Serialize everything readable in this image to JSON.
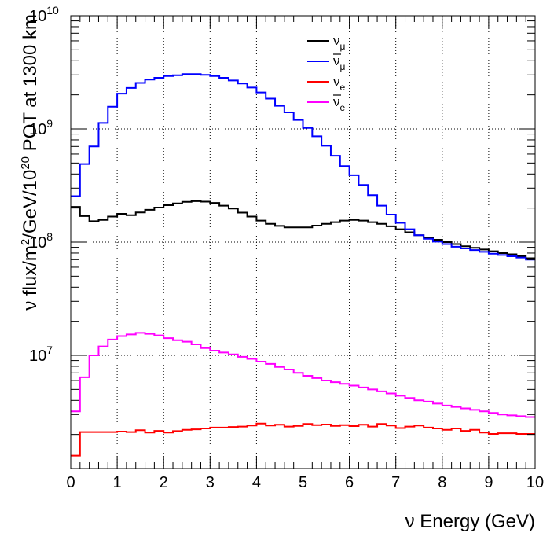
{
  "chart_data": {
    "type": "line",
    "style": "step-histogram",
    "title": "",
    "xlabel": "ν Energy (GeV)",
    "ylabel": "ν flux/m²/GeV/10²⁰ POT at 1300 km",
    "ylabel_parts": {
      "p1": "ν flux/m",
      "sup1": "2",
      "p2": "/GeV/10",
      "sup2": "20",
      "p3": " POT at 1300 km"
    },
    "xlim": [
      0,
      10
    ],
    "ylim": [
      1000000,
      10000000000
    ],
    "y_scale": "log",
    "grid": true,
    "legend_position": "top-right",
    "x_tick_labels": [
      "0",
      "1",
      "2",
      "3",
      "4",
      "5",
      "6",
      "7",
      "8",
      "9",
      "10"
    ],
    "y_tick_labels": [
      {
        "value": 10000000,
        "base": "10",
        "exp": "7"
      },
      {
        "value": 100000000,
        "base": "10",
        "exp": "8"
      },
      {
        "value": 1000000000,
        "base": "10",
        "exp": "9"
      },
      {
        "value": 10000000000,
        "base": "10",
        "exp": "10"
      }
    ],
    "bin_edges": [
      0,
      0.2,
      0.4,
      0.6,
      0.8,
      1.0,
      1.2,
      1.4,
      1.6,
      1.8,
      2.0,
      2.2,
      2.4,
      2.6,
      2.8,
      3.0,
      3.2,
      3.4,
      3.6,
      3.8,
      4.0,
      4.2,
      4.4,
      4.6,
      4.8,
      5.0,
      5.2,
      5.4,
      5.6,
      5.8,
      6.0,
      6.2,
      6.4,
      6.6,
      6.8,
      7.0,
      7.2,
      7.4,
      7.6,
      7.8,
      8.0,
      8.2,
      8.4,
      8.6,
      8.8,
      9.0,
      9.2,
      9.4,
      9.6,
      9.8,
      10.0
    ],
    "series": [
      {
        "name": "ν_μ",
        "label_main": "ν",
        "label_sub": "μ",
        "bar": false,
        "color": "#000000",
        "values": [
          205000000.0,
          170000000.0,
          153000000.0,
          157000000.0,
          168000000.0,
          178000000.0,
          173000000.0,
          183000000.0,
          193000000.0,
          202000000.0,
          212000000.0,
          220000000.0,
          227000000.0,
          230000000.0,
          228000000.0,
          222000000.0,
          210000000.0,
          198000000.0,
          182000000.0,
          168000000.0,
          155000000.0,
          145000000.0,
          139000000.0,
          135000000.0,
          135000000.0,
          135000000.0,
          140000000.0,
          145000000.0,
          150000000.0,
          155000000.0,
          157000000.0,
          155000000.0,
          150000000.0,
          145000000.0,
          138000000.0,
          130000000.0,
          122000000.0,
          115000000.0,
          110000000.0,
          105000000.0,
          100000000.0,
          96000000.0,
          92000000.0,
          89000000.0,
          86000000.0,
          83000000.0,
          80000000.0,
          78000000.0,
          75000000.0,
          72000000.0
        ]
      },
      {
        "name": "ν̄_μ",
        "label_main": "ν",
        "label_sub": "μ",
        "bar": true,
        "color": "#0000ff",
        "values": [
          255000000.0,
          490000000.0,
          700000000.0,
          1130000000.0,
          1570000000.0,
          2050000000.0,
          2300000000.0,
          2550000000.0,
          2730000000.0,
          2830000000.0,
          2930000000.0,
          2980000000.0,
          3050000000.0,
          3050000000.0,
          3000000000.0,
          2930000000.0,
          2830000000.0,
          2680000000.0,
          2520000000.0,
          2320000000.0,
          2100000000.0,
          1850000000.0,
          1600000000.0,
          1400000000.0,
          1200000000.0,
          1020000000.0,
          860000000.0,
          710000000.0,
          580000000.0,
          470000000.0,
          390000000.0,
          320000000.0,
          260000000.0,
          210000000.0,
          175000000.0,
          148000000.0,
          130000000.0,
          115000000.0,
          107000000.0,
          101000000.0,
          96000000.0,
          91000000.0,
          88000000.0,
          85000000.0,
          82000000.0,
          79000000.0,
          77000000.0,
          75000000.0,
          73000000.0,
          70000000.0
        ]
      },
      {
        "name": "ν_e",
        "label_main": "ν",
        "label_sub": "e",
        "bar": false,
        "color": "#ff0000",
        "values": [
          1300000.0,
          2100000.0,
          2100000.0,
          2100000.0,
          2100000.0,
          2120000.0,
          2100000.0,
          2180000.0,
          2080000.0,
          2150000.0,
          2080000.0,
          2140000.0,
          2200000.0,
          2220000.0,
          2260000.0,
          2300000.0,
          2300000.0,
          2330000.0,
          2350000.0,
          2400000.0,
          2500000.0,
          2400000.0,
          2440000.0,
          2350000.0,
          2380000.0,
          2480000.0,
          2420000.0,
          2450000.0,
          2380000.0,
          2420000.0,
          2370000.0,
          2440000.0,
          2350000.0,
          2480000.0,
          2400000.0,
          2280000.0,
          2350000.0,
          2400000.0,
          2300000.0,
          2260000.0,
          2200000.0,
          2260000.0,
          2150000.0,
          2200000.0,
          2080000.0,
          2020000.0,
          2050000.0,
          2050000.0,
          2020000.0,
          2020000.0
        ]
      },
      {
        "name": "ν̄_e",
        "label_main": "ν",
        "label_sub": "e",
        "bar": true,
        "color": "#ff00ff",
        "values": [
          3200000.0,
          6400000.0,
          10000000.0,
          12000000.0,
          13800000.0,
          14800000.0,
          15300000.0,
          15800000.0,
          15500000.0,
          15000000.0,
          14200000.0,
          13600000.0,
          13200000.0,
          12500000.0,
          11600000.0,
          11000000.0,
          10600000.0,
          10200000.0,
          9700000.0,
          9300000.0,
          8800000.0,
          8400000.0,
          7900000.0,
          7500000.0,
          7000000.0,
          6600000.0,
          6300000.0,
          6000000.0,
          5800000.0,
          5600000.0,
          5400000.0,
          5200000.0,
          5000000.0,
          4800000.0,
          4600000.0,
          4400000.0,
          4200000.0,
          4000000.0,
          3900000.0,
          3750000.0,
          3600000.0,
          3500000.0,
          3400000.0,
          3300000.0,
          3200000.0,
          3100000.0,
          3000000.0,
          2950000.0,
          2900000.0,
          2850000.0
        ]
      }
    ]
  }
}
